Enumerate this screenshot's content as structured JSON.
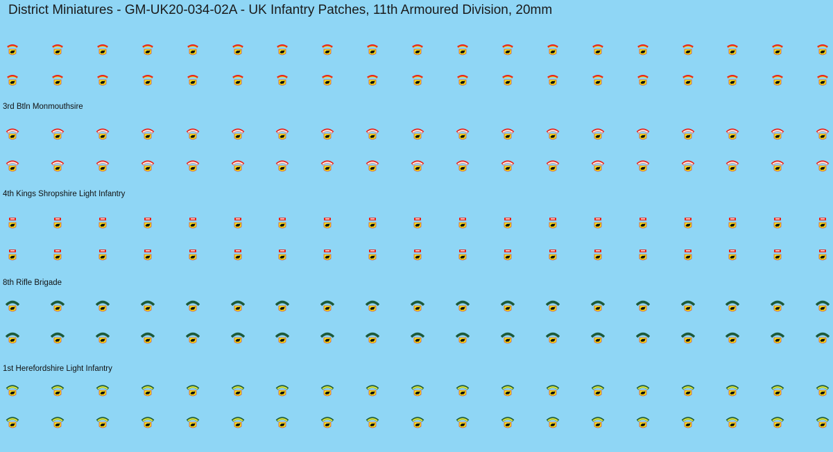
{
  "title": "District Miniatures - GM-UK20-034-02A - UK Infantry Patches, 11th Armoured Division, 20mm",
  "groups": [
    {
      "label": "",
      "style": "red-yellow-arc",
      "rows": 2,
      "cols": 19
    },
    {
      "label": "3rd Btln Monmouthsire",
      "style": "white-arc",
      "rows": 2,
      "cols": 19
    },
    {
      "label": "4th Kings Shropshire Light Infantry",
      "style": "red-tab",
      "rows": 2,
      "cols": 19
    },
    {
      "label": "8th Rifle Brigade",
      "style": "green-arc",
      "rows": 2,
      "cols": 19
    },
    {
      "label": "1st Herefordshire Light Infantry",
      "style": "yellow-green-arc",
      "rows": 2,
      "cols": 19
    }
  ],
  "icons": {
    "patch": "bull-badge-icon"
  },
  "colors": {
    "background": "#8fd6f5",
    "bull_badge": "#f2e11a",
    "bull": "#111111",
    "red_arc": "#e8241c",
    "green_arc": "#1c5a3a",
    "white_arc": "#f7f0ea",
    "yellow_green_arc": "#d9e33a"
  }
}
